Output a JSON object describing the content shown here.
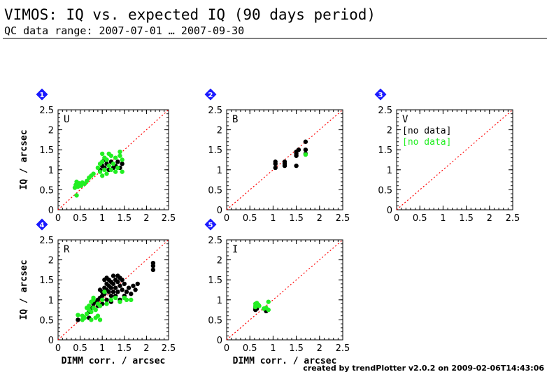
{
  "header": {
    "title": "VIMOS: IQ vs. expected IQ (90 days period)",
    "subtitle": "QC data range: 2007-07-01 … 2007-09-30"
  },
  "footer": {
    "credit": "created by trendPlotter v2.0.2 on 2009-02-06T14:43:06"
  },
  "colors": {
    "series_black": "#000000",
    "series_green": "#22ee22",
    "reference_line": "#ff0000",
    "badge": "#1a1aff"
  },
  "chart_data": [
    {
      "type": "scatter",
      "badge": "1",
      "filter_label": "U",
      "xlim": [
        0,
        2.5
      ],
      "ylim": [
        0,
        2.5
      ],
      "xticks": [
        "0",
        "0.5",
        "1",
        "1.5",
        "2",
        "2.5"
      ],
      "yticks": [
        "0",
        "0.5",
        "1",
        "1.5",
        "2",
        "2.5"
      ],
      "xlabel": "",
      "ylabel": "IQ / arcsec",
      "reference_line": "y = x",
      "no_data": [],
      "series": [
        {
          "color": "black",
          "points": [
            [
              0.42,
              0.6
            ],
            [
              0.45,
              0.65
            ],
            [
              0.5,
              0.62
            ],
            [
              0.95,
              1.0
            ],
            [
              1.0,
              1.1
            ],
            [
              1.05,
              1.05
            ],
            [
              1.1,
              1.15
            ],
            [
              1.15,
              1.0
            ],
            [
              1.2,
              1.2
            ],
            [
              1.3,
              1.1
            ],
            [
              1.35,
              1.2
            ],
            [
              1.4,
              1.05
            ],
            [
              1.45,
              1.15
            ],
            [
              1.05,
              1.25
            ],
            [
              1.25,
              1.05
            ]
          ]
        },
        {
          "color": "green",
          "points": [
            [
              0.38,
              0.55
            ],
            [
              0.4,
              0.62
            ],
            [
              0.42,
              0.7
            ],
            [
              0.45,
              0.58
            ],
            [
              0.48,
              0.66
            ],
            [
              0.52,
              0.6
            ],
            [
              0.55,
              0.68
            ],
            [
              0.6,
              0.65
            ],
            [
              0.65,
              0.72
            ],
            [
              0.7,
              0.8
            ],
            [
              0.75,
              0.85
            ],
            [
              0.8,
              0.9
            ],
            [
              0.42,
              0.36
            ],
            [
              0.9,
              1.05
            ],
            [
              0.95,
              1.15
            ],
            [
              1.0,
              1.2
            ],
            [
              1.0,
              1.4
            ],
            [
              1.05,
              1.3
            ],
            [
              1.05,
              1.0
            ],
            [
              1.1,
              1.25
            ],
            [
              1.1,
              0.9
            ],
            [
              1.15,
              1.1
            ],
            [
              1.2,
              1.35
            ],
            [
              1.2,
              1.0
            ],
            [
              1.25,
              1.15
            ],
            [
              1.3,
              1.3
            ],
            [
              1.35,
              1.05
            ],
            [
              1.4,
              1.45
            ],
            [
              1.45,
              1.25
            ],
            [
              1.45,
              0.95
            ],
            [
              1.0,
              0.85
            ],
            [
              0.95,
              0.95
            ],
            [
              1.15,
              1.4
            ],
            [
              1.3,
              0.95
            ],
            [
              1.4,
              1.35
            ]
          ]
        }
      ]
    },
    {
      "type": "scatter",
      "badge": "2",
      "filter_label": "B",
      "xlim": [
        0,
        2.5
      ],
      "ylim": [
        0,
        2.5
      ],
      "xticks": [
        "0",
        "0.5",
        "1",
        "1.5",
        "2",
        "2.5"
      ],
      "yticks": [
        "0",
        "0.5",
        "1",
        "1.5",
        "2",
        "2.5"
      ],
      "xlabel": "",
      "ylabel": "",
      "reference_line": "y = x",
      "no_data": [],
      "series": [
        {
          "color": "black",
          "points": [
            [
              1.05,
              1.05
            ],
            [
              1.05,
              1.15
            ],
            [
              1.05,
              1.2
            ],
            [
              1.25,
              1.1
            ],
            [
              1.25,
              1.15
            ],
            [
              1.25,
              1.2
            ],
            [
              1.5,
              1.1
            ],
            [
              1.5,
              1.35
            ],
            [
              1.5,
              1.4
            ],
            [
              1.5,
              1.45
            ],
            [
              1.55,
              1.5
            ],
            [
              1.7,
              1.4
            ],
            [
              1.7,
              1.5
            ],
            [
              1.7,
              1.7
            ]
          ]
        },
        {
          "color": "green",
          "points": [
            [
              1.7,
              1.38
            ]
          ]
        }
      ]
    },
    {
      "type": "scatter",
      "badge": "3",
      "filter_label": "V",
      "xlim": [
        0,
        2.5
      ],
      "ylim": [
        0,
        2.5
      ],
      "xticks": [
        "0",
        "0.5",
        "1",
        "1.5",
        "2",
        "2.5"
      ],
      "yticks": [
        "0",
        "0.5",
        "1",
        "1.5",
        "2",
        "2.5"
      ],
      "xlabel": "",
      "ylabel": "",
      "reference_line": "y = x",
      "no_data": [
        {
          "color": "black",
          "text": "[no data]"
        },
        {
          "color": "green",
          "text": "[no data]"
        }
      ],
      "series": []
    },
    {
      "type": "scatter",
      "badge": "4",
      "filter_label": "R",
      "xlim": [
        0,
        2.5
      ],
      "ylim": [
        0,
        2.5
      ],
      "xticks": [
        "0",
        "0.5",
        "1",
        "1.5",
        "2",
        "2.5"
      ],
      "yticks": [
        "0",
        "0.5",
        "1",
        "1.5",
        "2",
        "2.5"
      ],
      "xlabel": "DIMM corr. / arcsec",
      "ylabel": "IQ / arcsec",
      "reference_line": "y = x",
      "no_data": [],
      "series": [
        {
          "color": "black",
          "points": [
            [
              0.45,
              0.5
            ],
            [
              0.7,
              0.7
            ],
            [
              0.75,
              0.8
            ],
            [
              0.8,
              0.9
            ],
            [
              0.85,
              0.95
            ],
            [
              0.9,
              1.0
            ],
            [
              0.95,
              1.05
            ],
            [
              1.0,
              1.1
            ],
            [
              1.0,
              1.2
            ],
            [
              1.05,
              1.15
            ],
            [
              1.05,
              1.3
            ],
            [
              1.1,
              1.0
            ],
            [
              1.1,
              1.25
            ],
            [
              1.1,
              1.4
            ],
            [
              1.15,
              1.2
            ],
            [
              1.15,
              1.35
            ],
            [
              1.15,
              1.5
            ],
            [
              1.2,
              1.1
            ],
            [
              1.2,
              1.3
            ],
            [
              1.2,
              1.45
            ],
            [
              1.25,
              1.2
            ],
            [
              1.25,
              1.4
            ],
            [
              1.25,
              1.6
            ],
            [
              1.3,
              1.1
            ],
            [
              1.3,
              1.3
            ],
            [
              1.3,
              1.5
            ],
            [
              1.35,
              1.2
            ],
            [
              1.35,
              1.45
            ],
            [
              1.4,
              1.0
            ],
            [
              1.4,
              1.35
            ],
            [
              1.45,
              1.25
            ],
            [
              1.45,
              1.5
            ],
            [
              1.5,
              1.1
            ],
            [
              1.5,
              1.4
            ],
            [
              1.55,
              1.2
            ],
            [
              1.6,
              1.3
            ],
            [
              1.65,
              1.15
            ],
            [
              1.7,
              1.35
            ],
            [
              1.75,
              1.25
            ],
            [
              1.8,
              1.4
            ],
            [
              1.05,
              1.5
            ],
            [
              1.0,
              0.9
            ],
            [
              0.95,
              1.25
            ],
            [
              0.9,
              0.85
            ],
            [
              1.2,
              0.95
            ],
            [
              1.35,
              1.6
            ],
            [
              2.15,
              1.75
            ],
            [
              2.15,
              1.85
            ],
            [
              2.15,
              1.92
            ],
            [
              0.7,
              0.55
            ],
            [
              1.1,
              1.55
            ],
            [
              1.4,
              1.55
            ]
          ]
        },
        {
          "color": "green",
          "points": [
            [
              0.55,
              0.5
            ],
            [
              0.55,
              0.6
            ],
            [
              0.6,
              0.55
            ],
            [
              0.65,
              0.65
            ],
            [
              0.7,
              0.75
            ],
            [
              0.7,
              0.85
            ],
            [
              0.75,
              0.7
            ],
            [
              0.75,
              0.95
            ],
            [
              0.8,
              0.8
            ],
            [
              0.8,
              1.0
            ],
            [
              0.85,
              0.75
            ],
            [
              0.85,
              0.55
            ],
            [
              0.9,
              0.6
            ],
            [
              0.9,
              0.9
            ],
            [
              0.95,
              0.5
            ],
            [
              0.95,
              0.85
            ],
            [
              1.0,
              1.0
            ],
            [
              1.1,
              0.9
            ],
            [
              1.2,
              1.0
            ],
            [
              1.3,
              1.05
            ],
            [
              1.4,
              0.95
            ],
            [
              1.5,
              1.05
            ],
            [
              1.55,
              1.0
            ],
            [
              1.65,
              1.0
            ],
            [
              0.65,
              0.8
            ],
            [
              0.8,
              1.05
            ],
            [
              0.45,
              0.62
            ],
            [
              1.05,
              1.2
            ],
            [
              0.75,
              0.5
            ]
          ]
        }
      ]
    },
    {
      "type": "scatter",
      "badge": "5",
      "filter_label": "I",
      "xlim": [
        0,
        2.5
      ],
      "ylim": [
        0,
        2.5
      ],
      "xticks": [
        "0",
        "0.5",
        "1",
        "1.5",
        "2",
        "2.5"
      ],
      "yticks": [
        "0",
        "0.5",
        "1",
        "1.5",
        "2",
        "2.5"
      ],
      "xlabel": "DIMM corr. / arcsec",
      "ylabel": "",
      "reference_line": "y = x",
      "no_data": [],
      "series": [
        {
          "color": "black",
          "points": [
            [
              0.62,
              0.75
            ],
            [
              0.62,
              0.8
            ],
            [
              0.65,
              0.78
            ],
            [
              0.85,
              0.72
            ]
          ]
        },
        {
          "color": "green",
          "points": [
            [
              0.62,
              0.85
            ],
            [
              0.62,
              0.9
            ],
            [
              0.65,
              0.92
            ],
            [
              0.68,
              0.88
            ],
            [
              0.7,
              0.85
            ],
            [
              0.8,
              0.78
            ],
            [
              0.85,
              0.8
            ],
            [
              0.9,
              0.75
            ],
            [
              0.9,
              0.95
            ],
            [
              0.62,
              0.82
            ]
          ]
        }
      ]
    }
  ]
}
